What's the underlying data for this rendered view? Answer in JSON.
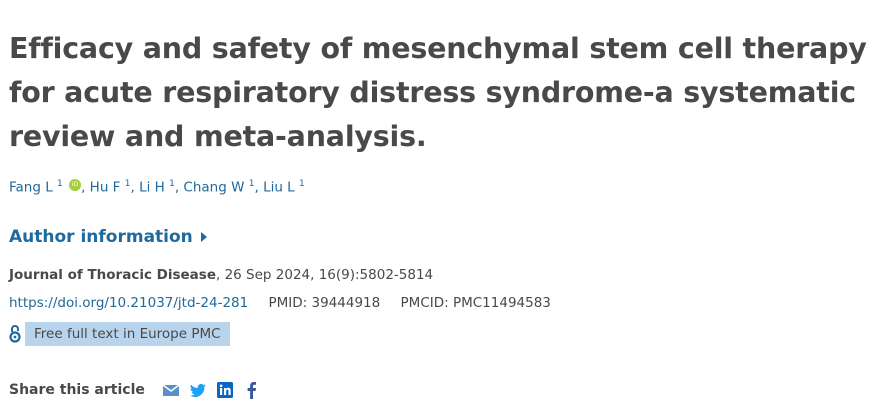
{
  "article": {
    "title": "Efficacy and safety of mesenchymal stem cell therapy for acute respiratory distress syndrome-a systematic review and meta-analysis.",
    "authors": [
      {
        "name": "Fang L",
        "aff": "1",
        "orcid": true
      },
      {
        "name": "Hu F",
        "aff": "1"
      },
      {
        "name": "Li H",
        "aff": "1"
      },
      {
        "name": "Chang W",
        "aff": "1"
      },
      {
        "name": "Liu L",
        "aff": "1"
      }
    ],
    "orcid_label": "iD",
    "author_info_label": "Author information",
    "journal": "Journal of Thoracic Disease",
    "citation": ", 26 Sep 2024, 16(9):5802-5814",
    "doi": "https://doi.org/10.21037/jtd-24-281",
    "pmid": "PMID: 39444918",
    "pmcid": "PMCID: PMC11494583",
    "free_text": "Free full text in Europe PMC",
    "share_label": "Share this article",
    "share_icons": [
      "email-icon",
      "twitter-icon",
      "linkedin-icon",
      "facebook-icon"
    ]
  },
  "colors": {
    "link": "#20699c",
    "text": "#494949",
    "highlight": "#b8d4ec",
    "orcid": "#a6ce39"
  }
}
